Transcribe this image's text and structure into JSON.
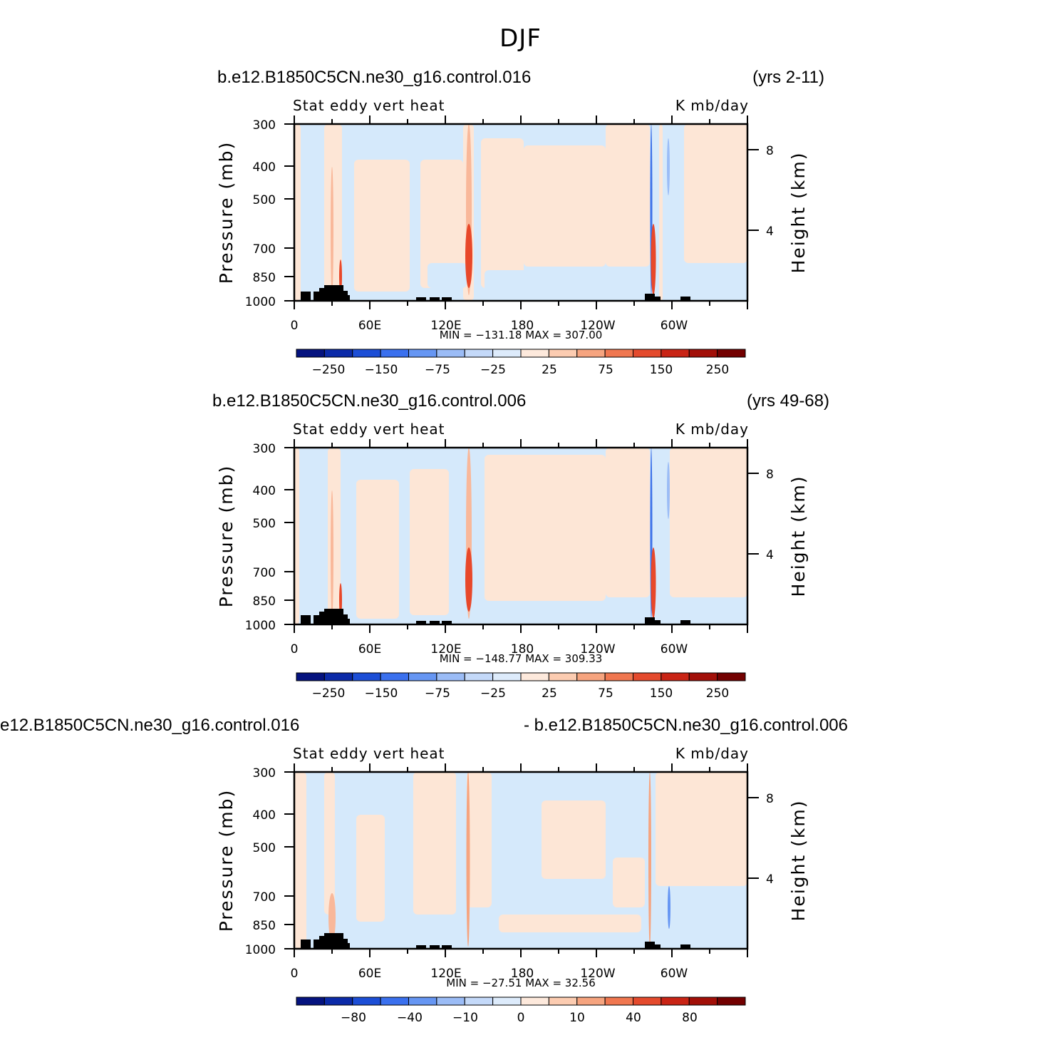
{
  "page_title": "DJF",
  "colors": {
    "fill_positive": "#fde6d6",
    "fill_negative": "#d5e9fb",
    "strong_positive": "#e8482a",
    "strong_negative": "#3f72e8",
    "topography": "#000000"
  },
  "chart_data": [
    {
      "type": "heatmap",
      "case": "b.e12.B1850C5CN.ne30_g16.control.016",
      "years": "(yrs 2-11)",
      "variable": "Stat eddy vert heat",
      "units": "K mb/day",
      "ylabel": "Pressure (mb)",
      "ylabel_right": "Height (km)",
      "y_ticks": [
        "300",
        "400",
        "500",
        "700",
        "850",
        "1000"
      ],
      "y_right_ticks": [
        "8",
        "4"
      ],
      "x_ticks": [
        "0",
        "60E",
        "120E",
        "180",
        "120W",
        "60W"
      ],
      "stats": "MIN = −131.18   MAX = 307.00",
      "colorbar_labels": [
        "−250",
        "−150",
        "−75",
        "−25",
        "25",
        "75",
        "150",
        "250"
      ],
      "colorbar_colors": [
        "#05137f",
        "#0b2aa8",
        "#1c4ed6",
        "#3a70ee",
        "#6696f3",
        "#9bbcf6",
        "#c4d9f9",
        "#ddebfb",
        "#fde9dc",
        "#fcccb1",
        "#f6a47f",
        "#f07750",
        "#e44a2d",
        "#c92415",
        "#a20f08",
        "#730000"
      ]
    },
    {
      "type": "heatmap",
      "case": "b.e12.B1850C5CN.ne30_g16.control.006",
      "years": "(yrs 49-68)",
      "variable": "Stat eddy vert heat",
      "units": "K mb/day",
      "ylabel": "Pressure (mb)",
      "ylabel_right": "Height (km)",
      "y_ticks": [
        "300",
        "400",
        "500",
        "700",
        "850",
        "1000"
      ],
      "y_right_ticks": [
        "8",
        "4"
      ],
      "x_ticks": [
        "0",
        "60E",
        "120E",
        "180",
        "120W",
        "60W"
      ],
      "stats": "MIN = −148.77   MAX = 309.33",
      "colorbar_labels": [
        "−250",
        "−150",
        "−75",
        "−25",
        "25",
        "75",
        "150",
        "250"
      ],
      "colorbar_colors": [
        "#05137f",
        "#0b2aa8",
        "#1c4ed6",
        "#3a70ee",
        "#6696f3",
        "#9bbcf6",
        "#c4d9f9",
        "#ddebfb",
        "#fde9dc",
        "#fcccb1",
        "#f6a47f",
        "#f07750",
        "#e44a2d",
        "#c92415",
        "#a20f08",
        "#730000"
      ]
    },
    {
      "type": "heatmap",
      "case": "e12.B1850C5CN.ne30_g16.control.016",
      "years": "- b.e12.B1850C5CN.ne30_g16.control.006",
      "variable": "Stat eddy vert heat",
      "units": "K mb/day",
      "ylabel": "Pressure (mb)",
      "ylabel_right": "Height (km)",
      "y_ticks": [
        "300",
        "400",
        "500",
        "700",
        "850",
        "1000"
      ],
      "y_right_ticks": [
        "8",
        "4"
      ],
      "x_ticks": [
        "0",
        "60E",
        "120E",
        "180",
        "120W",
        "60W"
      ],
      "stats": "MIN = −27.51   MAX =   32.56",
      "colorbar_labels": [
        "−80",
        "−40",
        "−10",
        "0",
        "10",
        "40",
        "80"
      ],
      "colorbar_colors": [
        "#05137f",
        "#0b2aa8",
        "#1c4ed6",
        "#3a70ee",
        "#6696f3",
        "#9bbcf6",
        "#c4d9f9",
        "#ddebfb",
        "#fde9dc",
        "#fcccb1",
        "#f6a47f",
        "#f07750",
        "#e44a2d",
        "#c92415",
        "#a20f08",
        "#730000"
      ]
    }
  ]
}
